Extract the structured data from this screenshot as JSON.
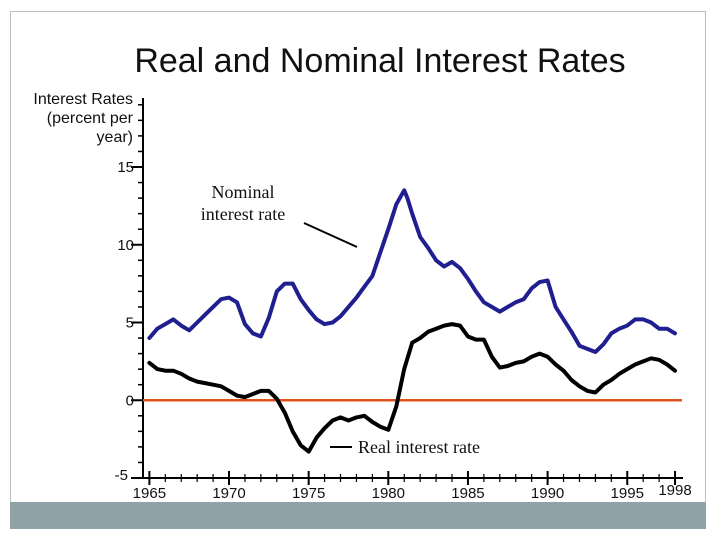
{
  "colors": {
    "nominal": "#1f1f8f",
    "real": "#000000",
    "zero": "#e0521e",
    "footer": "#8fa3a8"
  },
  "chart_data": {
    "type": "line",
    "title": "Real and Nominal Interest Rates",
    "ylabel": [
      "Interest Rates",
      "(percent per",
      "year)"
    ],
    "xlabel": "",
    "xlim": [
      1964.6,
      1998.5
    ],
    "ylim": [
      -5,
      15
    ],
    "y_ticks": [
      15,
      10,
      5,
      0,
      -5
    ],
    "x_ticks": [
      1965,
      1970,
      1975,
      1980,
      1985,
      1990,
      1995,
      1998
    ],
    "zero_line": 0,
    "annotations": {
      "nominal": [
        "Nominal",
        "interest rate"
      ],
      "real": "Real interest rate"
    },
    "series": [
      {
        "name": "Nominal interest rate",
        "x": [
          1965,
          1965.5,
          1966,
          1966.5,
          1967,
          1967.5,
          1968,
          1968.5,
          1969,
          1969.5,
          1970,
          1970.5,
          1971,
          1971.5,
          1972,
          1972.5,
          1973,
          1973.5,
          1974,
          1974.5,
          1975,
          1975.5,
          1976,
          1976.5,
          1977,
          1977.5,
          1978,
          1978.5,
          1979,
          1979.5,
          1980,
          1980.5,
          1981,
          1981.2,
          1981.5,
          1982,
          1982.5,
          1983,
          1983.5,
          1984,
          1984.5,
          1985,
          1985.5,
          1986,
          1986.5,
          1987,
          1987.5,
          1988,
          1988.5,
          1989,
          1989.5,
          1990,
          1990.5,
          1991,
          1991.5,
          1992,
          1992.5,
          1993,
          1993.5,
          1994,
          1994.5,
          1995,
          1995.5,
          1996,
          1996.5,
          1997,
          1997.5,
          1998
        ],
        "values": [
          4.0,
          4.6,
          4.9,
          5.2,
          4.8,
          4.5,
          5.0,
          5.5,
          6.0,
          6.5,
          6.6,
          6.3,
          4.9,
          4.3,
          4.1,
          5.3,
          7.0,
          7.5,
          7.5,
          6.5,
          5.8,
          5.2,
          4.9,
          5.0,
          5.4,
          6.0,
          6.6,
          7.3,
          8.0,
          9.5,
          11.0,
          12.6,
          13.5,
          13.0,
          12.0,
          10.5,
          9.8,
          9.0,
          8.6,
          8.9,
          8.5,
          7.8,
          7.0,
          6.3,
          6.0,
          5.7,
          6.0,
          6.3,
          6.5,
          7.2,
          7.6,
          7.7,
          6.0,
          5.2,
          4.4,
          3.5,
          3.3,
          3.1,
          3.6,
          4.3,
          4.6,
          4.8,
          5.2,
          5.2,
          5.0,
          4.6,
          4.6,
          4.3
        ]
      },
      {
        "name": "Real interest rate",
        "x": [
          1965,
          1965.5,
          1966,
          1966.5,
          1967,
          1967.5,
          1968,
          1968.5,
          1969,
          1969.5,
          1970,
          1970.5,
          1971,
          1971.5,
          1972,
          1972.5,
          1973,
          1973.5,
          1974,
          1974.5,
          1975,
          1975.5,
          1976,
          1976.5,
          1977,
          1977.5,
          1978,
          1978.5,
          1979,
          1979.5,
          1980,
          1980.5,
          1981,
          1981.5,
          1982,
          1982.5,
          1983,
          1983.5,
          1984,
          1984.5,
          1985,
          1985.5,
          1986,
          1986.5,
          1987,
          1987.5,
          1988,
          1988.5,
          1989,
          1989.5,
          1990,
          1990.5,
          1991,
          1991.5,
          1992,
          1992.5,
          1993,
          1993.5,
          1994,
          1994.5,
          1995,
          1995.5,
          1996,
          1996.5,
          1997,
          1997.5,
          1998
        ],
        "values": [
          2.4,
          2.0,
          1.9,
          1.9,
          1.7,
          1.4,
          1.2,
          1.1,
          1.0,
          0.9,
          0.6,
          0.3,
          0.2,
          0.4,
          0.6,
          0.6,
          0.1,
          -0.8,
          -2.0,
          -2.9,
          -3.3,
          -2.4,
          -1.8,
          -1.3,
          -1.1,
          -1.3,
          -1.1,
          -1.0,
          -1.4,
          -1.7,
          -1.9,
          -0.4,
          2.0,
          3.7,
          4.0,
          4.4,
          4.6,
          4.8,
          4.9,
          4.8,
          4.1,
          3.9,
          3.9,
          2.8,
          2.1,
          2.2,
          2.4,
          2.5,
          2.8,
          3.0,
          2.8,
          2.3,
          1.9,
          1.3,
          0.9,
          0.6,
          0.5,
          1.0,
          1.3,
          1.7,
          2.0,
          2.3,
          2.5,
          2.7,
          2.6,
          2.3,
          1.9
        ]
      }
    ]
  }
}
